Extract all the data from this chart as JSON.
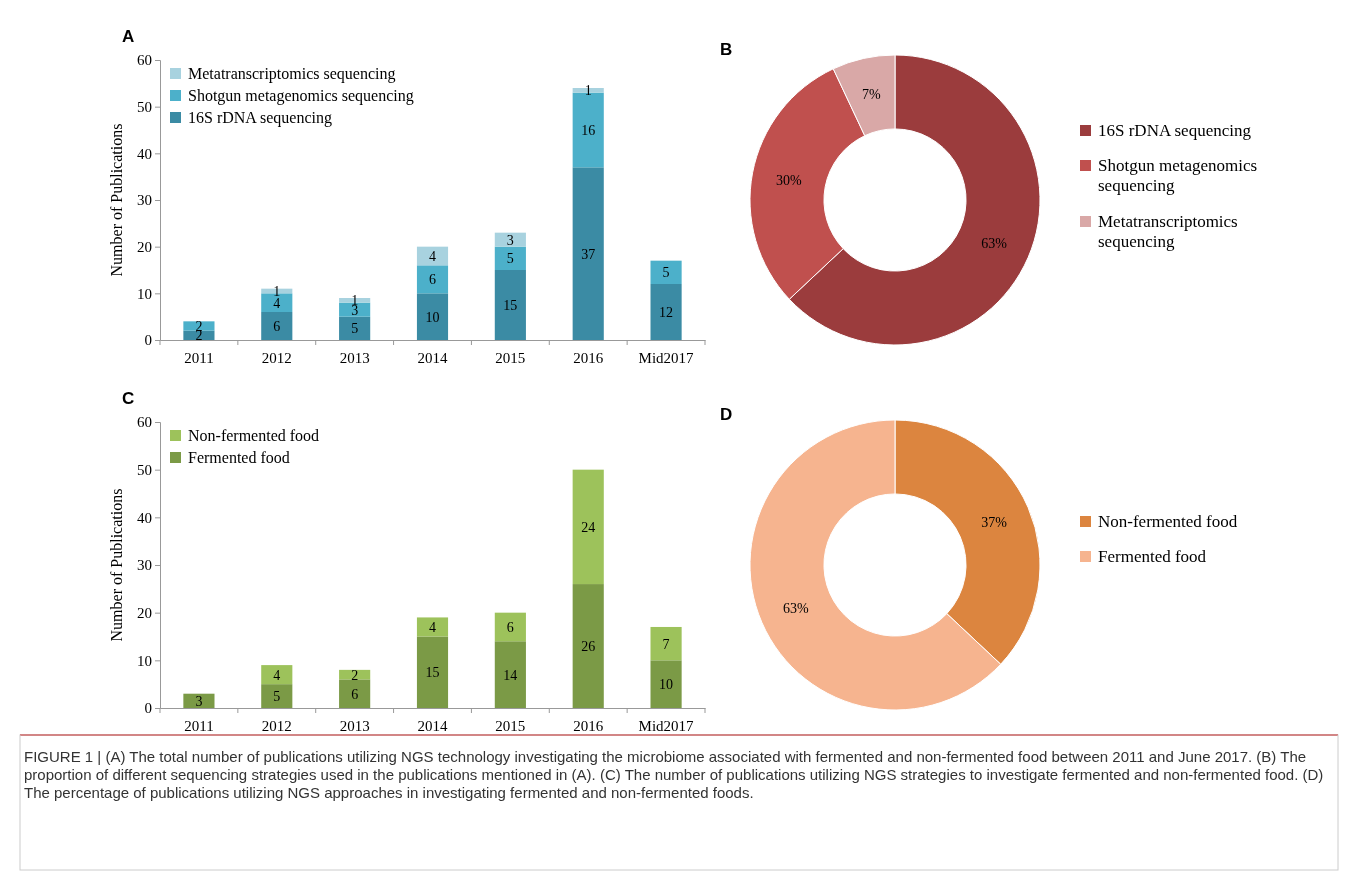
{
  "chart_data": [
    {
      "type": "bar",
      "title": "A",
      "ylabel": "Number of Publications",
      "categories": [
        "2011",
        "2012",
        "2013",
        "2014",
        "2015",
        "2016",
        "Mid2017"
      ],
      "stacked": true,
      "ylim": [
        0,
        60
      ],
      "yticks": [
        0,
        10,
        20,
        30,
        40,
        50,
        60
      ],
      "legend": "top left",
      "series": [
        {
          "name": "16S rDNA sequencing",
          "color": "#3b8ba4",
          "values": [
            2,
            6,
            5,
            10,
            15,
            37,
            12
          ],
          "value_labels": [
            "2",
            "6",
            "5",
            "10",
            "15",
            "37",
            "12"
          ]
        },
        {
          "name": "Shotgun metagenomics sequencing",
          "color": "#4cb0ca",
          "values": [
            2,
            4,
            3,
            6,
            5,
            16,
            5
          ],
          "value_labels": [
            "2",
            "4",
            "3",
            "6",
            "5",
            "16",
            "5"
          ]
        },
        {
          "name": "Metatranscriptomics sequencing",
          "color": "#a8d2df",
          "values": [
            0,
            1,
            1,
            4,
            3,
            1,
            0
          ],
          "value_labels": [
            null,
            "1",
            "1",
            "4",
            "3",
            "1",
            null
          ]
        }
      ],
      "annotations": [
        "FIGURE 1 | (A) The total number of publications utilizing NGS technology investigating the microbiome associated with fermented and non-fermented food between 2011 and June 2017. (B) The proportion of different sequencing strategies used in the publications mentioned in (A). (C) The number of publications utilizing NGS strategies to investigate fermented and non-fermented food. (D) The percentage of publications utilizing NGS approaches in investigating fermented and non-fermented foods."
      ]
    },
    {
      "type": "donut",
      "title": "B",
      "categories": [
        "16S rDNA sequencing",
        "Shotgun metagenomics sequencing",
        "Metatranscriptomics sequencing"
      ],
      "values": [
        63,
        30,
        7
      ],
      "value_labels": [
        "63%",
        "30%",
        "7%"
      ],
      "colors": [
        "#9b3c3d",
        "#c0504e",
        "#d9a8a7"
      ],
      "legend": "right"
    },
    {
      "type": "bar",
      "title": "C",
      "ylabel": "Number of Publications",
      "categories": [
        "2011",
        "2012",
        "2013",
        "2014",
        "2015",
        "2016",
        "Mid2017"
      ],
      "stacked": true,
      "ylim": [
        0,
        60
      ],
      "yticks": [
        0,
        10,
        20,
        30,
        40,
        50,
        60
      ],
      "legend": "top left",
      "series": [
        {
          "name": "Fermented food",
          "color": "#7b9a46",
          "values": [
            3,
            5,
            6,
            15,
            14,
            26,
            10
          ],
          "value_labels": [
            "3",
            "5",
            "6",
            "15",
            "14",
            "26",
            "10"
          ]
        },
        {
          "name": "Non-fermented food",
          "color": "#9dc25b",
          "values": [
            0,
            4,
            2,
            4,
            6,
            24,
            7
          ],
          "value_labels": [
            null,
            "4",
            "2",
            "4",
            "6",
            "24",
            "7"
          ]
        }
      ]
    },
    {
      "type": "donut",
      "title": "D",
      "categories": [
        "Non-fermented food",
        "Fermented food"
      ],
      "values": [
        37,
        63
      ],
      "value_labels": [
        "37%",
        "63%"
      ],
      "colors": [
        "#dc853f",
        "#f6b48f"
      ],
      "legend": "right"
    }
  ]
}
